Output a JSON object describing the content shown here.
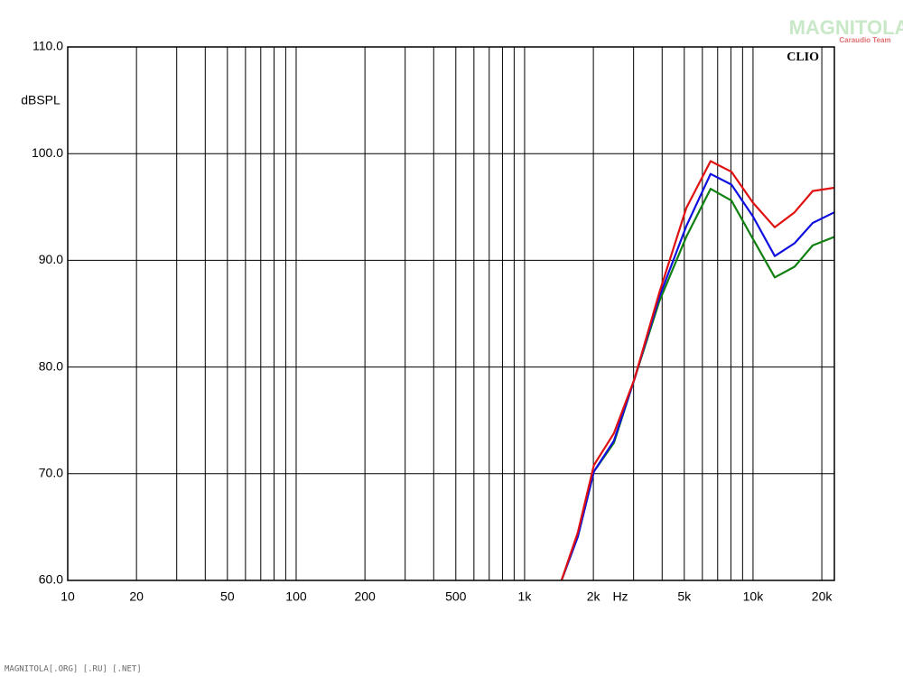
{
  "chart_data": {
    "type": "line",
    "y_label": "dBSPL",
    "x_label": "Hz",
    "brand": "CLIO",
    "watermark": "MAGNITOLA",
    "watermark_sub": "Caraudio Team",
    "footer": "MAGNITOLA[.ORG] [.RU] [.NET]",
    "xlog": true,
    "grid": true,
    "xlim": [
      10,
      22700
    ],
    "ylim": [
      60,
      110
    ],
    "xticks": [
      10,
      20,
      50,
      100,
      200,
      500,
      {
        "value": 1000,
        "label": "1k"
      },
      {
        "value": 2000,
        "label": "2k"
      },
      {
        "value": 5000,
        "label": "5k"
      },
      {
        "value": 10000,
        "label": "10k"
      },
      {
        "value": 20000,
        "label": "20k"
      }
    ],
    "xgrid_minor": [
      30,
      40,
      60,
      70,
      80,
      90,
      300,
      400,
      600,
      700,
      800,
      900,
      3000,
      4000,
      6000,
      7000,
      8000,
      9000
    ],
    "yticks": [
      {
        "value": 60,
        "label": "60.0"
      },
      {
        "value": 70,
        "label": "70.0"
      },
      {
        "value": 80,
        "label": "80.0"
      },
      {
        "value": 90,
        "label": "90.0"
      },
      {
        "value": 100,
        "label": "100.0"
      },
      {
        "value": 110,
        "label": "110.0"
      }
    ],
    "x": [
      1450,
      1710,
      2010,
      2460,
      3030,
      3880,
      5100,
      6520,
      8040,
      10000,
      12450,
      15200,
      18240,
      22700
    ],
    "series": [
      {
        "color": "#e01010",
        "values": [
          60,
          64.5,
          70.8,
          73.8,
          78.9,
          86.9,
          94.9,
          99.3,
          98.3,
          95.4,
          93.1,
          94.5,
          96.5,
          96.8
        ]
      },
      {
        "color": "#1010e0",
        "values": [
          60,
          64.1,
          70.2,
          73.1,
          78.9,
          86.5,
          93.2,
          98.1,
          97.1,
          94.1,
          90.4,
          91.6,
          93.5,
          94.5
        ]
      },
      {
        "color": "#108010",
        "values": [
          60,
          64.1,
          70.2,
          72.9,
          78.9,
          86.1,
          92.2,
          96.7,
          95.6,
          92.0,
          88.4,
          89.4,
          91.4,
          92.2
        ]
      }
    ]
  }
}
